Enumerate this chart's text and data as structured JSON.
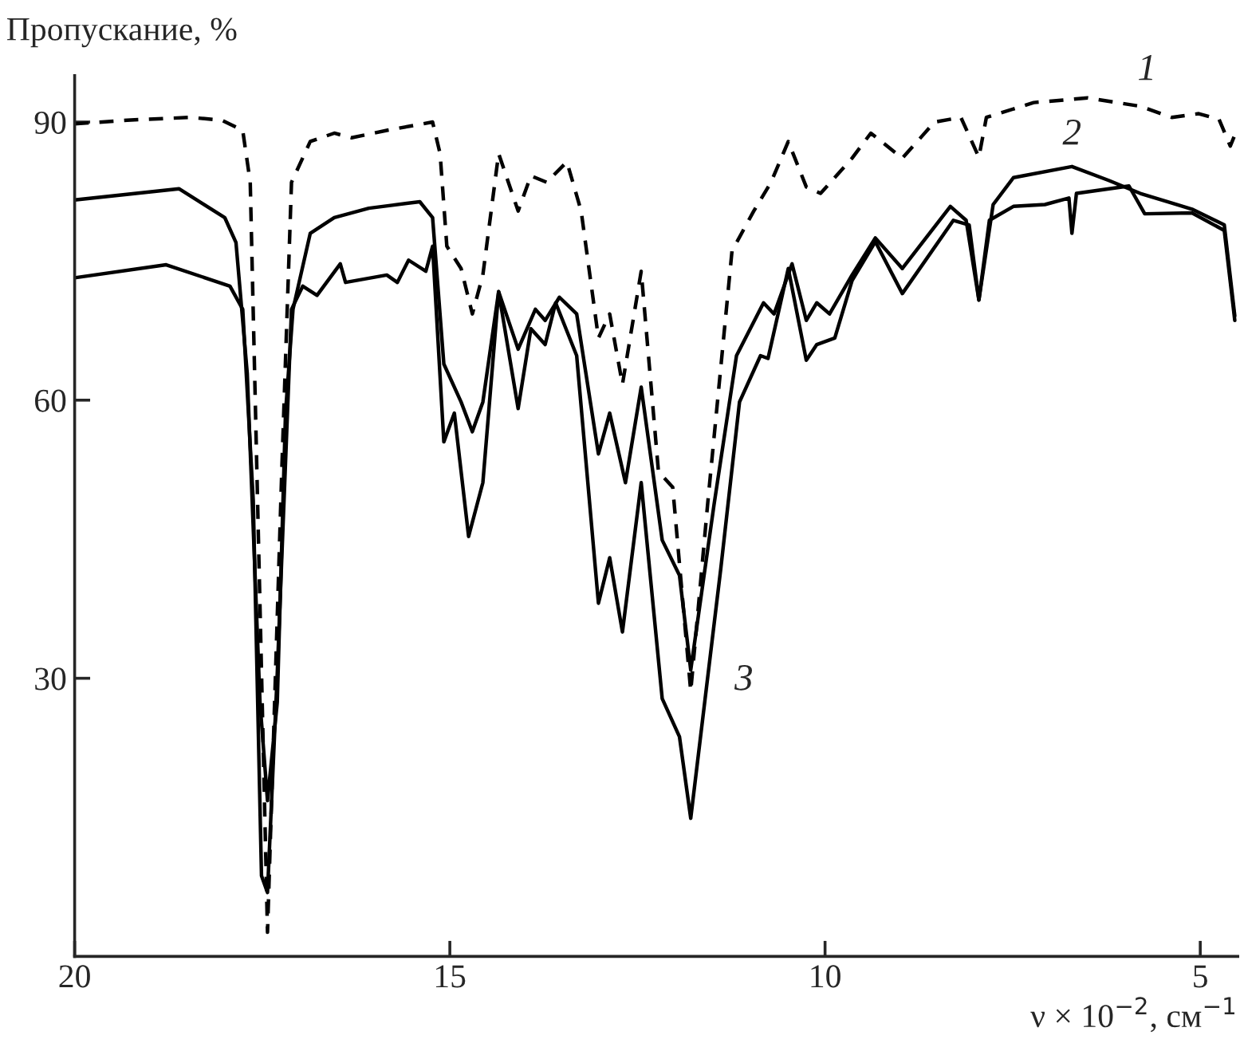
{
  "chart_data": {
    "type": "line",
    "ylabel": "Пропускание, %",
    "xlabel": "ν × 10$^{−2}$, см$^{−1}$",
    "xlim": [
      20,
      4.5
    ],
    "ylim": [
      0,
      95
    ],
    "xticks": [
      20,
      15,
      10,
      5
    ],
    "yticks": [
      30,
      60,
      90
    ],
    "grid": false,
    "legend": false,
    "series": [
      {
        "name": "1",
        "color": "#000000",
        "line_style": "dashed",
        "x": [
          20,
          19.3,
          18.46,
          18.04,
          17.76,
          17.66,
          17.43,
          17.24,
          17.11,
          16.86,
          16.54,
          16.31,
          15.84,
          15.23,
          15.13,
          15.04,
          14.85,
          14.7,
          14.56,
          14.35,
          14.09,
          13.92,
          13.71,
          13.44,
          13.25,
          13.02,
          12.87,
          12.7,
          12.45,
          12.22,
          12.03,
          11.79,
          11.56,
          11.24,
          10.95,
          10.72,
          10.49,
          10.25,
          10.06,
          9.64,
          9.39,
          8.97,
          8.54,
          8.19,
          7.95,
          7.85,
          7.22,
          6.5,
          5.8,
          5.38,
          5.02,
          4.75,
          4.6,
          4.54
        ],
        "values": [
          89.8,
          90.2,
          90.5,
          90.2,
          89.1,
          83.5,
          2.6,
          52.3,
          83.5,
          87.9,
          88.8,
          88.3,
          89.1,
          90.0,
          86.6,
          76.6,
          74.2,
          69.3,
          73.5,
          86.6,
          80.4,
          84.2,
          83.5,
          85.7,
          80.4,
          66.7,
          69.3,
          61.7,
          73.9,
          52.3,
          50.6,
          28.6,
          49.2,
          76.1,
          80.4,
          83.5,
          87.9,
          83.0,
          82.3,
          86.1,
          88.8,
          86.1,
          90.0,
          90.5,
          86.2,
          90.5,
          92.1,
          92.6,
          91.7,
          90.5,
          90.9,
          90.3,
          87.4,
          88.6
        ]
      },
      {
        "name": "2",
        "color": "#000000",
        "line_style": "solid",
        "x": [
          20,
          18.61,
          18.0,
          17.85,
          17.7,
          17.53,
          17.43,
          17.3,
          17.19,
          17.09,
          16.86,
          16.54,
          16.08,
          15.4,
          15.23,
          15.08,
          14.85,
          14.7,
          14.56,
          14.35,
          14.09,
          13.86,
          13.73,
          13.54,
          13.31,
          13.02,
          12.87,
          12.66,
          12.45,
          12.17,
          11.94,
          11.79,
          11.48,
          11.18,
          10.82,
          10.68,
          10.44,
          10.25,
          10.11,
          9.94,
          9.64,
          9.33,
          8.97,
          8.33,
          8.12,
          7.95,
          7.76,
          7.49,
          6.71,
          6.22,
          5.8,
          5.11,
          4.68,
          4.54
        ],
        "values": [
          81.6,
          82.8,
          79.7,
          77.0,
          62.9,
          27.4,
          16.8,
          27.4,
          58.6,
          69.8,
          78.0,
          79.7,
          80.7,
          81.4,
          79.7,
          63.9,
          59.8,
          56.6,
          59.8,
          71.7,
          65.5,
          69.8,
          68.6,
          71.1,
          69.3,
          54.2,
          58.6,
          51.1,
          61.4,
          44.9,
          41.1,
          30.9,
          48.7,
          64.8,
          70.5,
          69.3,
          74.7,
          68.6,
          70.5,
          69.3,
          73.5,
          77.5,
          74.2,
          80.9,
          79.4,
          70.8,
          81.1,
          84.0,
          85.2,
          83.7,
          82.3,
          80.6,
          78.9,
          69.1
        ]
      },
      {
        "name": "3",
        "color": "#000000",
        "line_style": "solid",
        "x": [
          20,
          18.78,
          17.93,
          17.76,
          17.62,
          17.51,
          17.43,
          17.3,
          17.11,
          16.96,
          16.77,
          16.46,
          16.39,
          15.84,
          15.7,
          15.55,
          15.32,
          15.23,
          15.08,
          14.94,
          14.75,
          14.56,
          14.35,
          14.09,
          13.92,
          13.73,
          13.59,
          13.31,
          13.02,
          12.87,
          12.7,
          12.45,
          12.17,
          11.94,
          11.79,
          11.39,
          11.14,
          10.86,
          10.76,
          10.49,
          10.25,
          10.11,
          9.87,
          9.64,
          9.33,
          8.97,
          8.29,
          8.08,
          7.95,
          7.81,
          7.49,
          7.07,
          6.75,
          6.71,
          6.65,
          5.95,
          5.74,
          5.11,
          4.68,
          4.54
        ],
        "values": [
          73.2,
          74.6,
          72.3,
          69.8,
          49.2,
          8.7,
          6.9,
          30.5,
          69.8,
          72.3,
          71.3,
          74.7,
          72.7,
          73.5,
          72.7,
          75.1,
          73.9,
          76.6,
          55.5,
          58.6,
          45.3,
          51.1,
          71.7,
          59.1,
          67.7,
          66.0,
          70.5,
          64.8,
          38.1,
          43.0,
          35.0,
          51.1,
          27.8,
          23.7,
          14.9,
          41.8,
          59.8,
          64.8,
          64.5,
          74.2,
          64.3,
          66.0,
          66.7,
          72.9,
          77.1,
          71.5,
          79.4,
          78.9,
          70.8,
          79.4,
          80.9,
          81.1,
          81.8,
          78.0,
          82.3,
          83.1,
          80.1,
          80.2,
          78.3,
          68.6
        ]
      }
    ]
  }
}
